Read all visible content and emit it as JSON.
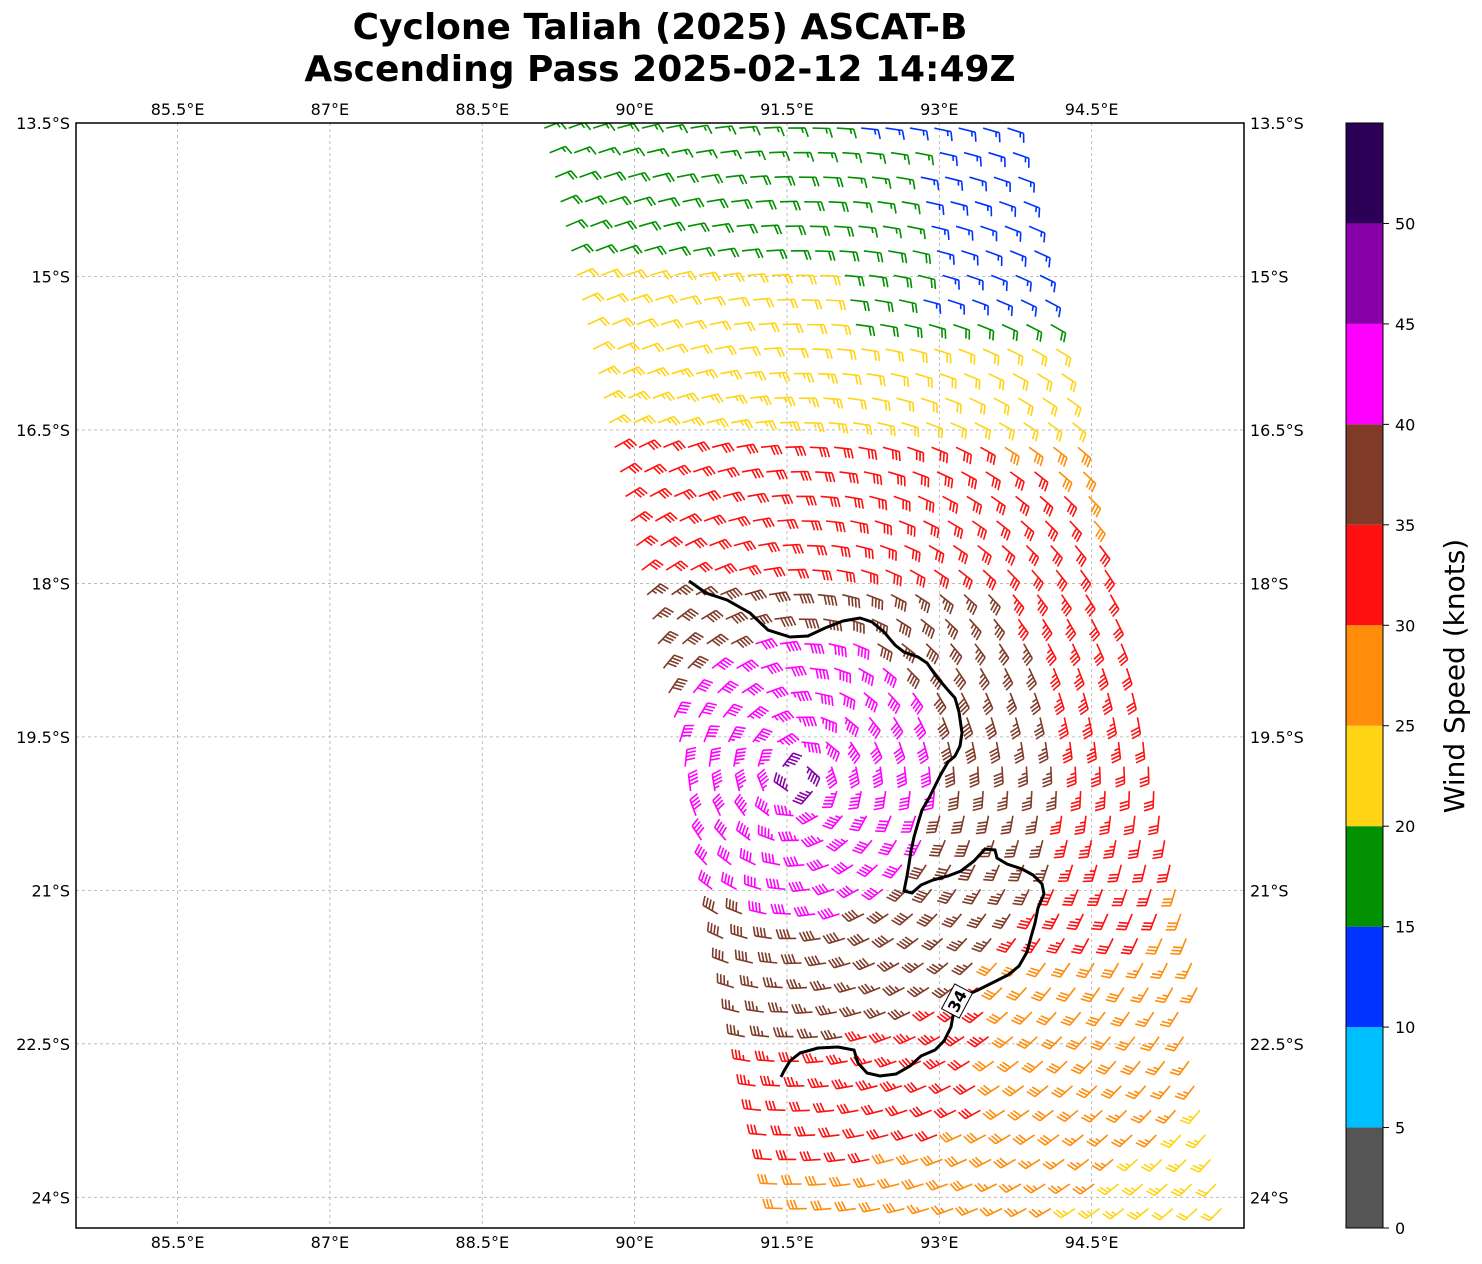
{
  "title_line1": "Cyclone Taliah (2025) ASCAT-B",
  "title_line2": "Ascending Pass 2025-02-12 14:49Z",
  "map": {
    "lon_range": [
      84.5,
      96.0
    ],
    "lat_range": [
      -24.3,
      -13.5
    ],
    "lon_ticks": [
      "85.5°E",
      "87°E",
      "88.5°E",
      "90°E",
      "91.5°E",
      "93°E",
      "94.5°E"
    ],
    "lon_tick_values": [
      85.5,
      87.0,
      88.5,
      90.0,
      91.5,
      93.0,
      94.5
    ],
    "lat_ticks": [
      "13.5°S",
      "15°S",
      "16.5°S",
      "18°S",
      "19.5°S",
      "21°S",
      "22.5°S",
      "24°S"
    ],
    "lat_tick_values": [
      -13.5,
      -15.0,
      -16.5,
      -18.0,
      -19.5,
      -21.0,
      -22.5,
      -24.0
    ],
    "grid": true,
    "contour_label": "34",
    "contour_level_kt": 34,
    "contour_color": "#000000"
  },
  "colorbar": {
    "label": "Wind Speed (knots)",
    "ticks": [
      "0",
      "5",
      "10",
      "15",
      "20",
      "25",
      "30",
      "35",
      "40",
      "45",
      "50"
    ],
    "bins": [
      {
        "min": 0,
        "max": 5,
        "color": "#555555"
      },
      {
        "min": 5,
        "max": 10,
        "color": "#00bfff"
      },
      {
        "min": 10,
        "max": 15,
        "color": "#0033ff"
      },
      {
        "min": 15,
        "max": 20,
        "color": "#009000"
      },
      {
        "min": 20,
        "max": 25,
        "color": "#ffd414"
      },
      {
        "min": 25,
        "max": 30,
        "color": "#ff8c0a"
      },
      {
        "min": 30,
        "max": 35,
        "color": "#ff1010"
      },
      {
        "min": 35,
        "max": 40,
        "color": "#7f3a28"
      },
      {
        "min": 40,
        "max": 45,
        "color": "#ff00ff"
      },
      {
        "min": 45,
        "max": 50,
        "color": "#8800aa"
      },
      {
        "min": 50,
        "max": 55,
        "color": "#2d0057"
      }
    ]
  },
  "wind_field": {
    "swath_left_edge_lon": {
      "lat_north": -13.5,
      "lon_north": 89.1,
      "lat_south": -24.3,
      "lon_south": 91.5
    },
    "swath_right_edge_lon": {
      "lat_north": -13.5,
      "lon_north": 93.9,
      "lat_south": -24.3,
      "lon_south": 96.0
    },
    "max_wind_kt": 52,
    "center_approx": {
      "lat": -19.9,
      "lon": 91.6
    }
  }
}
